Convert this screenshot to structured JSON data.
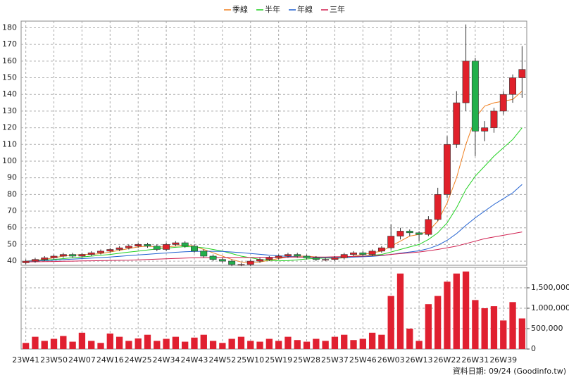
{
  "chart_data": {
    "type": "candlestick",
    "categories": [
      "23W41",
      null,
      null,
      "23W50",
      null,
      null,
      "24W07",
      null,
      null,
      "24W16",
      null,
      null,
      "24W25",
      null,
      null,
      "24W34",
      null,
      null,
      "24W43",
      null,
      null,
      "24W52",
      null,
      null,
      "25W10",
      null,
      null,
      "25W19",
      null,
      null,
      "25W28",
      null,
      null,
      "25W37",
      null,
      null,
      "25W46",
      null,
      null,
      "26W03",
      null,
      null,
      "26W13",
      null,
      null,
      "26W22",
      null,
      null,
      "26W31",
      null,
      null,
      "26W39",
      null,
      null
    ],
    "open": [
      39,
      40,
      41,
      42,
      43,
      44,
      43,
      44,
      45,
      46,
      47,
      48,
      49,
      50,
      49,
      47,
      50,
      51,
      49,
      46,
      43,
      41,
      40,
      38,
      38,
      40,
      41,
      42,
      43,
      44,
      43,
      42,
      41,
      41,
      42,
      44,
      45,
      44,
      46,
      48,
      55,
      58,
      57,
      56,
      65,
      80,
      110,
      135,
      160,
      118,
      120,
      130,
      140,
      150
    ],
    "high": [
      41,
      42,
      43,
      44,
      45,
      45,
      45,
      46,
      47,
      48,
      49,
      50,
      51,
      51,
      50,
      51,
      52,
      52,
      50,
      47,
      44,
      42,
      41,
      39,
      41,
      42,
      43,
      44,
      45,
      45,
      44,
      43,
      42,
      43,
      45,
      46,
      46,
      47,
      49,
      62,
      60,
      59,
      58,
      67,
      84,
      115,
      142,
      182,
      162,
      124,
      132,
      142,
      152,
      169
    ],
    "low": [
      38,
      39,
      40,
      41,
      42,
      42,
      42,
      43,
      44,
      45,
      46,
      47,
      48,
      48,
      46,
      46,
      49,
      48,
      45,
      42,
      40,
      39,
      37,
      37,
      37,
      39,
      40,
      41,
      42,
      42,
      41,
      40,
      40,
      40,
      41,
      43,
      43,
      43,
      45,
      47,
      53,
      55,
      52,
      55,
      64,
      78,
      108,
      130,
      103,
      112,
      117,
      128,
      135,
      138
    ],
    "close": [
      40,
      41,
      42,
      43,
      44,
      43,
      44,
      45,
      46,
      47,
      48,
      49,
      50,
      49,
      47,
      50,
      51,
      49,
      46,
      43,
      41,
      40,
      38,
      38,
      40,
      41,
      42,
      43,
      44,
      43,
      42,
      41,
      41,
      42,
      44,
      45,
      44,
      46,
      48,
      55,
      58,
      57,
      56,
      65,
      80,
      110,
      135,
      160,
      118,
      120,
      130,
      140,
      150,
      155
    ],
    "volume": [
      150000,
      300000,
      200000,
      250000,
      320000,
      180000,
      400000,
      200000,
      150000,
      380000,
      300000,
      200000,
      260000,
      350000,
      200000,
      250000,
      300000,
      180000,
      280000,
      350000,
      200000,
      150000,
      250000,
      300000,
      200000,
      180000,
      250000,
      200000,
      300000,
      220000,
      180000,
      250000,
      200000,
      300000,
      350000,
      220000,
      250000,
      400000,
      350000,
      1300000,
      1850000,
      500000,
      200000,
      1100000,
      1300000,
      1650000,
      1850000,
      1900000,
      1200000,
      1000000,
      1050000,
      700000,
      1150000,
      750000
    ],
    "up_color": "#e0202a",
    "down_color": "#22b04b",
    "volume_color": "#e02030",
    "series": [
      {
        "name": "季線",
        "color": "#f08020",
        "values": [
          40,
          40.5,
          41,
          42,
          43,
          43.5,
          44,
          44,
          44.5,
          45.5,
          46.5,
          47.5,
          48.5,
          49,
          48.5,
          48.5,
          49,
          50,
          49,
          47,
          45,
          43,
          41,
          39.5,
          39,
          39.5,
          40.5,
          41.5,
          42.5,
          43,
          43,
          42.5,
          42,
          41.5,
          42,
          43,
          44,
          45,
          46,
          49,
          52,
          55,
          56,
          58,
          64,
          75,
          90,
          110,
          126,
          133,
          135,
          136,
          137,
          142
        ]
      },
      {
        "name": "半年",
        "color": "#20d020",
        "values": [
          40,
          40.2,
          40.6,
          41,
          41.5,
          42,
          42.5,
          43,
          43.5,
          44,
          44.7,
          45.4,
          46,
          46.7,
          47.3,
          47.8,
          48.3,
          48.7,
          48.6,
          48,
          47,
          46,
          44.5,
          43,
          42,
          41,
          40.5,
          40.2,
          40.3,
          40.8,
          41.3,
          41.7,
          41.8,
          41.8,
          42,
          42.5,
          43,
          43.5,
          44,
          45.5,
          47,
          48.5,
          50,
          53,
          57,
          63,
          72,
          83,
          91,
          97,
          103,
          108,
          113,
          120
        ]
      },
      {
        "name": "年線",
        "color": "#2060d0",
        "values": [
          40,
          40.1,
          40.3,
          40.6,
          40.9,
          41.2,
          41.5,
          41.8,
          42.1,
          42.5,
          42.9,
          43.3,
          43.7,
          44.1,
          44.5,
          44.9,
          45.3,
          45.6,
          45.8,
          45.9,
          45.9,
          45.8,
          45.5,
          45.1,
          44.6,
          44.1,
          43.6,
          43.2,
          42.8,
          42.5,
          42.3,
          42.2,
          42.1,
          42.1,
          42.2,
          42.4,
          42.6,
          42.9,
          43.3,
          44,
          44.8,
          45.5,
          46.2,
          47.5,
          49.5,
          52.5,
          56.5,
          61.5,
          66,
          70,
          74,
          77.5,
          81,
          86
        ]
      },
      {
        "name": "三年",
        "color": "#d02050",
        "values": [
          39.5,
          39.6,
          39.7,
          39.8,
          39.9,
          40,
          40.1,
          40.2,
          40.3,
          40.4,
          40.5,
          40.6,
          40.8,
          41,
          41.2,
          41.4,
          41.6,
          41.8,
          42,
          42.1,
          42.2,
          42.2,
          42.2,
          42.2,
          42.2,
          42.3,
          42.3,
          42.3,
          42.4,
          42.4,
          42.5,
          42.5,
          42.5,
          42.6,
          42.7,
          42.8,
          43,
          43.2,
          43.5,
          44,
          44.5,
          45,
          45.5,
          46.2,
          47,
          48,
          49,
          50.5,
          52,
          53.5,
          54.5,
          55.5,
          56.5,
          57.5
        ]
      }
    ],
    "ylim": [
      37.5,
      184
    ],
    "yticks": [
      40,
      50,
      60,
      70,
      80,
      90,
      100,
      110,
      120,
      130,
      140,
      150,
      160,
      170,
      180
    ],
    "y2lim": [
      0,
      2000000
    ],
    "y2ticks": [
      0,
      {
        "value": 500000,
        "label": "500,000"
      },
      {
        "value": 1000000,
        "label": "1,000,000"
      },
      {
        "value": 1500000,
        "label": "1,500,000"
      }
    ],
    "grid": true,
    "source": "資料日期: 09/24 (Goodinfo.tw)"
  }
}
